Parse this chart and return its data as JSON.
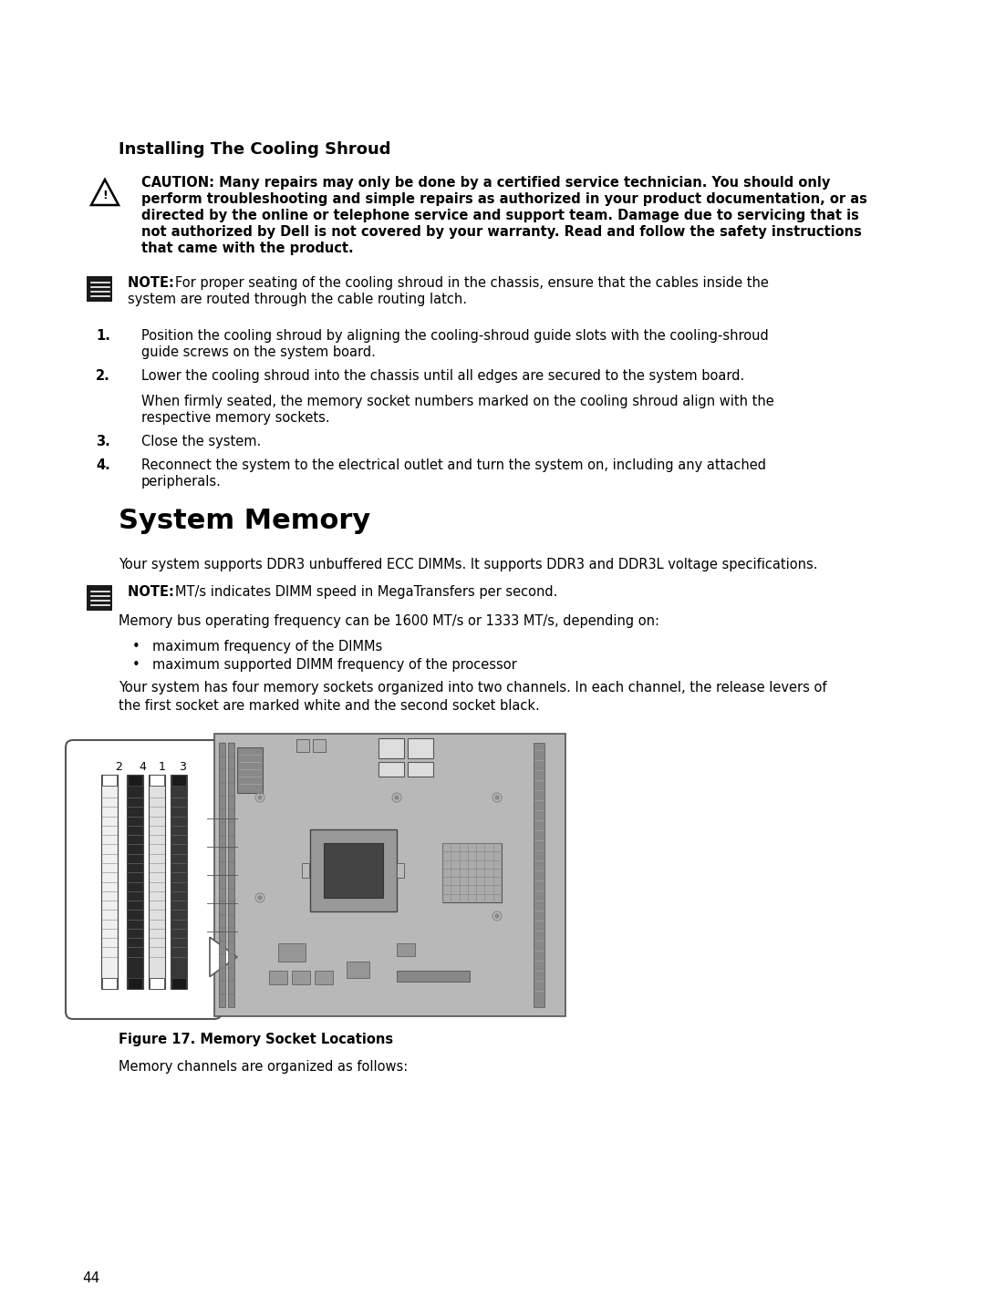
{
  "bg_color": "#ffffff",
  "text_color": "#000000",
  "page_number": "44",
  "section1_title": "Installing The Cooling Shroud",
  "caution_lines": [
    "CAUTION: Many repairs may only be done by a certified service technician. You should only",
    "perform troubleshooting and simple repairs as authorized in your product documentation, or as",
    "directed by the online or telephone service and support team. Damage due to servicing that is",
    "not authorized by Dell is not covered by your warranty. Read and follow the safety instructions",
    "that came with the product."
  ],
  "note1_lines": [
    "NOTE: For proper seating of the cooling shroud in the chassis, ensure that the cables inside the",
    "system are routed through the cable routing latch."
  ],
  "steps": [
    {
      "num": "1.",
      "lines": [
        "Position the cooling shroud by aligning the cooling-shroud guide slots with the cooling-shroud",
        "guide screws on the system board."
      ]
    },
    {
      "num": "2.",
      "lines": [
        "Lower the cooling shroud into the chassis until all edges are secured to the system board."
      ],
      "extra": [
        "When firmly seated, the memory socket numbers marked on the cooling shroud align with the",
        "respective memory sockets."
      ]
    },
    {
      "num": "3.",
      "lines": [
        "Close the system."
      ]
    },
    {
      "num": "4.",
      "lines": [
        "Reconnect the system to the electrical outlet and turn the system on, including any attached",
        "peripherals."
      ]
    }
  ],
  "section2_title": "System Memory",
  "para1": "Your system supports DDR3 unbuffered ECC DIMMs. It supports DDR3 and DDR3L voltage specifications.",
  "note2_line": "NOTE: MT/s indicates DIMM speed in MegaTransfers per second.",
  "para2": "Memory bus operating frequency can be 1600 MT/s or 1333 MT/s, depending on:",
  "bullets": [
    "maximum frequency of the DIMMs",
    "maximum supported DIMM frequency of the processor"
  ],
  "para3_lines": [
    "Your system has four memory sockets organized into two channels. In each channel, the release levers of",
    "the first socket are marked white and the second socket black."
  ],
  "figure_caption": "Figure 17. Memory Socket Locations",
  "para4": "Memory channels are organized as follows:"
}
